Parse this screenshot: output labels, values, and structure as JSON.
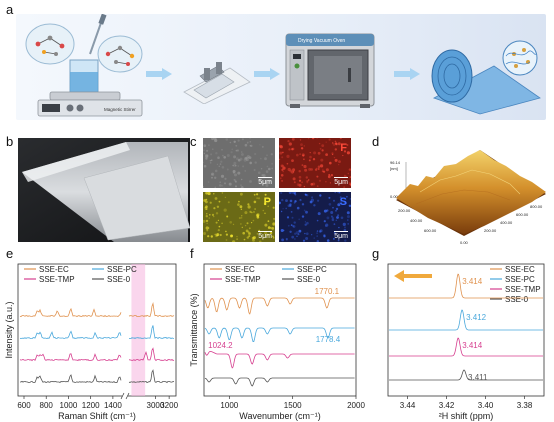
{
  "panel_letters": {
    "a": "a",
    "b": "b",
    "c": "c",
    "d": "d",
    "e": "e",
    "f": "f",
    "g": "g"
  },
  "panel_a": {
    "device_label": "Magnetic Stirrer",
    "oven_label": "Drying Vacuum Oven"
  },
  "panel_c": {
    "scale_bar": "5μm",
    "maps": [
      {
        "element": "",
        "color": "#6e6e6e",
        "text_color": "#ffffff"
      },
      {
        "element": "F",
        "color": "#7a1a12",
        "text_color": "#ff4a3a"
      },
      {
        "element": "P",
        "color": "#6b6a16",
        "text_color": "#f5e830"
      },
      {
        "element": "S",
        "color": "#141c4a",
        "text_color": "#3a6cff"
      }
    ]
  },
  "panel_d": {
    "z_max": "96.14",
    "z_unit": "[nm]",
    "z_min": "0.00",
    "axis_ticks": [
      "200.00",
      "400.00",
      "600.00",
      "0.00",
      "200.00",
      "400.00",
      "600.00",
      "800.00"
    ]
  },
  "colors": {
    "SSE-EC": "#e0924f",
    "SSE-PC": "#4aa8dc",
    "SSE-TMP": "#d63f8f",
    "SSE-0": "#555555",
    "highlight": "#f6b5df"
  },
  "chart_data": [
    {
      "panel": "e",
      "type": "line",
      "xlabel": "Raman Shift (cm⁻¹)",
      "ylabel": "Intensity (a.u.)",
      "x_ticks": [
        "600",
        "800",
        "1000",
        "1200",
        "1400",
        "3000",
        "3200"
      ],
      "x_break": true,
      "highlight_region_x": [
        2650,
        2850
      ],
      "legend": [
        "SSE-EC",
        "SSE-PC",
        "SSE-TMP",
        "SSE-0"
      ],
      "series": [
        {
          "name": "SSE-EC",
          "peaks_x": [
            720,
            745,
            900,
            1020,
            1230,
            1480,
            2960
          ]
        },
        {
          "name": "SSE-PC",
          "peaks_x": [
            720,
            745,
            850,
            1020,
            1240,
            1460,
            2960
          ]
        },
        {
          "name": "SSE-TMP",
          "peaks_x": [
            720,
            745,
            770,
            1020,
            1240,
            1460,
            2860,
            2960
          ]
        },
        {
          "name": "SSE-0",
          "peaks_x": [
            720,
            745,
            1020,
            1240,
            1460,
            2960
          ]
        }
      ]
    },
    {
      "panel": "f",
      "type": "line",
      "xlabel": "Wavenumber (cm⁻¹)",
      "ylabel": "Transmittance (%)",
      "x_ticks": [
        "1000",
        "1500",
        "2000"
      ],
      "xlim": [
        800,
        2000
      ],
      "legend": [
        "SSE-EC",
        "SSE-PC",
        "SSE-TMP",
        "SSE-0"
      ],
      "annotations": [
        {
          "text": "1770.1",
          "series": "SSE-EC",
          "x": 1770.1
        },
        {
          "text": "1778.4",
          "series": "SSE-PC",
          "x": 1778.4
        },
        {
          "text": "1024.2",
          "series": "SSE-TMP",
          "x": 1024.2
        }
      ]
    },
    {
      "panel": "g",
      "type": "line",
      "xlabel": "²H shift (ppm)",
      "x_ticks": [
        "3.44",
        "3.42",
        "3.40",
        "3.38"
      ],
      "xlim": [
        3.45,
        3.37
      ],
      "legend": [
        "SSE-EC",
        "SSE-PC",
        "SSE-TMP",
        "SSE-0"
      ],
      "peaks": [
        {
          "name": "SSE-EC",
          "x": 3.414,
          "label": "3.414"
        },
        {
          "name": "SSE-PC",
          "x": 3.412,
          "label": "3.412"
        },
        {
          "name": "SSE-TMP",
          "x": 3.414,
          "label": "3.414"
        },
        {
          "name": "SSE-0",
          "x": 3.411,
          "label": "3.411"
        }
      ]
    }
  ]
}
